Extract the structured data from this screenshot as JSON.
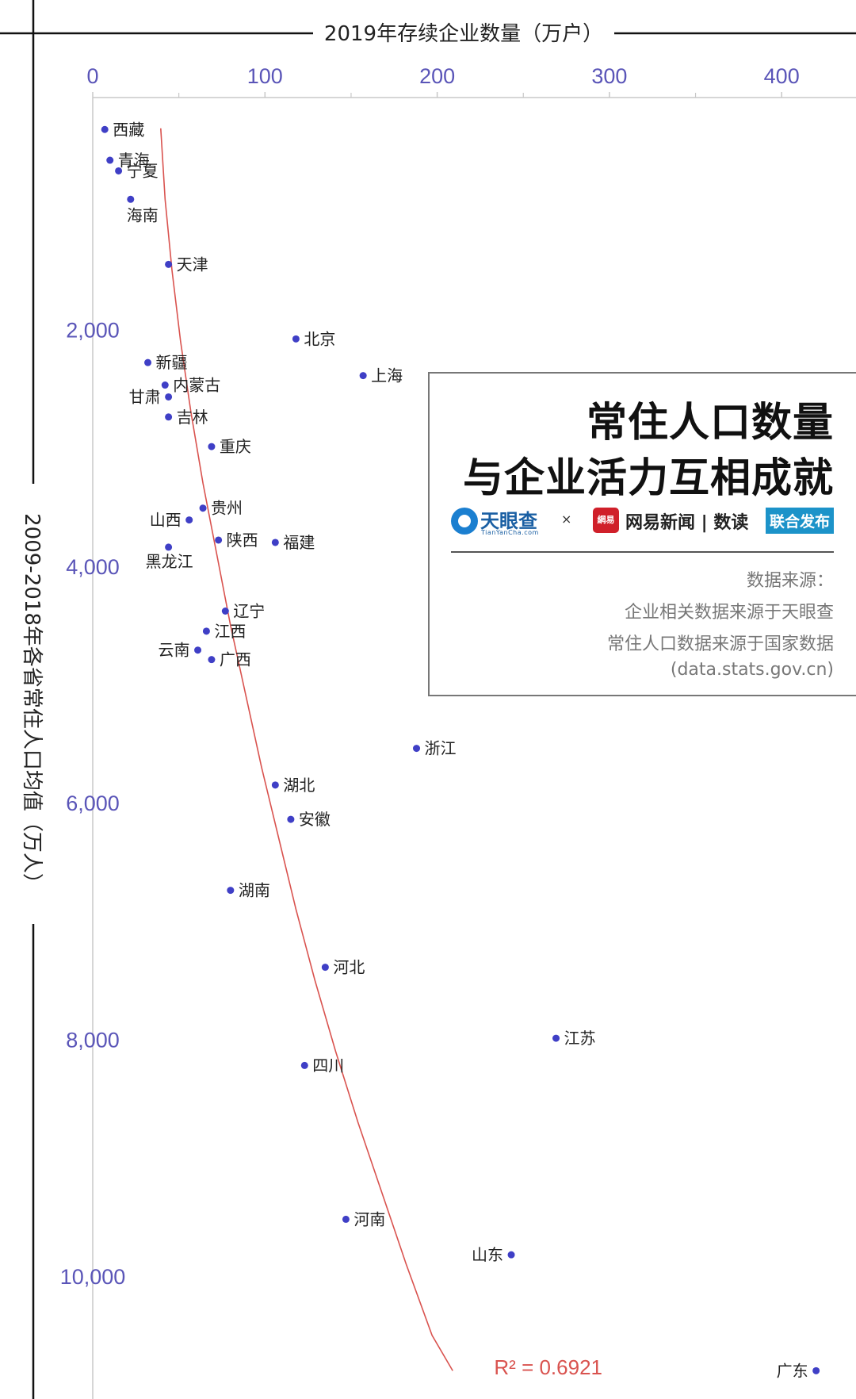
{
  "chart_data": {
    "type": "scatter",
    "xlabel": "2019年存续企业数量（万户）",
    "ylabel": "2009-2018年各省常住人口均值（万人）",
    "x_ticks": [
      0,
      100,
      200,
      300,
      400
    ],
    "x_tick_labels": [
      "0",
      "100",
      "200",
      "300",
      "400"
    ],
    "y_ticks": [
      2000,
      4000,
      6000,
      8000,
      10000
    ],
    "y_tick_labels": [
      "2,000",
      "4,000",
      "6,000",
      "8,000",
      "10,000"
    ],
    "xlim": [
      0,
      440
    ],
    "ylim": [
      300,
      10800
    ],
    "y_inverted": true,
    "grid": false,
    "points": [
      {
        "name": "西藏",
        "x": 7,
        "y": 310,
        "label_side": "right"
      },
      {
        "name": "青海",
        "x": 10,
        "y": 570,
        "label_side": "right"
      },
      {
        "name": "宁夏",
        "x": 15,
        "y": 660,
        "label_side": "right"
      },
      {
        "name": "海南",
        "x": 22,
        "y": 900,
        "label_side": "below"
      },
      {
        "name": "天津",
        "x": 44,
        "y": 1450,
        "label_side": "right"
      },
      {
        "name": "北京",
        "x": 118,
        "y": 2080,
        "label_side": "right"
      },
      {
        "name": "上海",
        "x": 157,
        "y": 2390,
        "label_side": "right"
      },
      {
        "name": "新疆",
        "x": 32,
        "y": 2280,
        "label_side": "right"
      },
      {
        "name": "内蒙古",
        "x": 42,
        "y": 2470,
        "label_side": "right"
      },
      {
        "name": "甘肃",
        "x": 44,
        "y": 2570,
        "label_side": "left"
      },
      {
        "name": "吉林",
        "x": 44,
        "y": 2740,
        "label_side": "right"
      },
      {
        "name": "重庆",
        "x": 69,
        "y": 2990,
        "label_side": "right"
      },
      {
        "name": "贵州",
        "x": 64,
        "y": 3510,
        "label_side": "right"
      },
      {
        "name": "山西",
        "x": 56,
        "y": 3610,
        "label_side": "left"
      },
      {
        "name": "陕西",
        "x": 73,
        "y": 3780,
        "label_side": "right"
      },
      {
        "name": "福建",
        "x": 106,
        "y": 3800,
        "label_side": "right"
      },
      {
        "name": "黑龙江",
        "x": 44,
        "y": 3840,
        "label_side": "below-left"
      },
      {
        "name": "辽宁",
        "x": 77,
        "y": 4380,
        "label_side": "right"
      },
      {
        "name": "江西",
        "x": 66,
        "y": 4550,
        "label_side": "right"
      },
      {
        "name": "云南",
        "x": 61,
        "y": 4710,
        "label_side": "left"
      },
      {
        "name": "广西",
        "x": 69,
        "y": 4790,
        "label_side": "right"
      },
      {
        "name": "浙江",
        "x": 188,
        "y": 5540,
        "label_side": "right"
      },
      {
        "name": "湖北",
        "x": 106,
        "y": 5850,
        "label_side": "right"
      },
      {
        "name": "安徽",
        "x": 115,
        "y": 6140,
        "label_side": "right"
      },
      {
        "name": "湖南",
        "x": 80,
        "y": 6740,
        "label_side": "right"
      },
      {
        "name": "河北",
        "x": 135,
        "y": 7390,
        "label_side": "right"
      },
      {
        "name": "江苏",
        "x": 269,
        "y": 7990,
        "label_side": "right"
      },
      {
        "name": "四川",
        "x": 123,
        "y": 8220,
        "label_side": "right"
      },
      {
        "name": "河南",
        "x": 147,
        "y": 9520,
        "label_side": "right"
      },
      {
        "name": "山东",
        "x": 243,
        "y": 9820,
        "label_side": "left"
      },
      {
        "name": "广东",
        "x": 420,
        "y": 10800,
        "label_side": "left"
      }
    ],
    "trendline": {
      "type": "power",
      "color": "#d9534f",
      "points": [
        [
          39.5,
          300
        ],
        [
          42,
          900
        ],
        [
          46,
          1500
        ],
        [
          51,
          2100
        ],
        [
          57,
          2700
        ],
        [
          64,
          3300
        ],
        [
          72,
          3900
        ],
        [
          80,
          4500
        ],
        [
          89,
          5100
        ],
        [
          98,
          5700
        ],
        [
          108,
          6300
        ],
        [
          118,
          6900
        ],
        [
          129,
          7500
        ],
        [
          141,
          8100
        ],
        [
          154,
          8700
        ],
        [
          168,
          9300
        ],
        [
          182,
          9900
        ],
        [
          197,
          10500
        ],
        [
          209,
          10800
        ]
      ],
      "label": "R² = 0.6921"
    },
    "point_color": "#3f3fc6"
  },
  "info_box": {
    "title_line1": "常住人口数量",
    "title_line2": "与企业活力互相成就",
    "logo_tianyancha": "天眼查",
    "logo_tianyancha_url": "TianYanCha.com",
    "cross": "×",
    "logo_netease_mark": "網易",
    "logo_netease_name": "网易新闻 | 数读",
    "badge": "联合发布",
    "source_title": "数据来源：",
    "source_line1": "企业相关数据来源于天眼查",
    "source_line2": "常住人口数据来源于国家数据",
    "source_line3": "(data.stats.gov.cn)"
  },
  "colors": {
    "axis": "#111111",
    "tick_text": "#5a55b8",
    "point": "#3f3fc6",
    "trend": "#d9534f",
    "faint_axis": "#c8c8c8"
  }
}
